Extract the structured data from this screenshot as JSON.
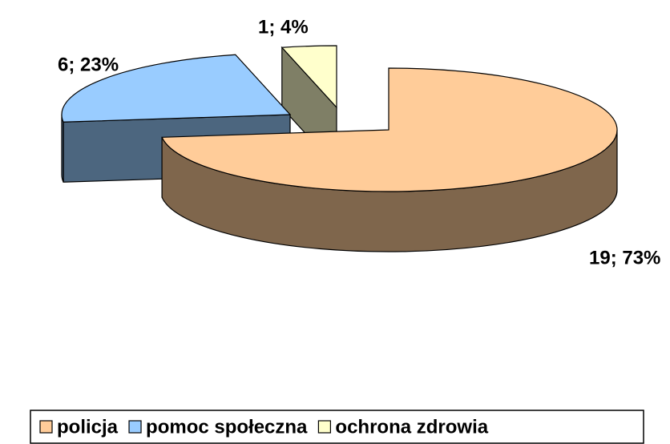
{
  "chart_data": {
    "type": "pie",
    "three_d": true,
    "categories": [
      "policja",
      "pomoc społeczna",
      "ochrona zdrowia"
    ],
    "values": [
      19,
      6,
      1
    ],
    "value_labels": [
      "19; 73%",
      "6; 23%",
      "1; 4%"
    ],
    "colors": [
      "#FFCC99",
      "#99CCFF",
      "#FFFFCC"
    ],
    "legend": "bottom"
  }
}
